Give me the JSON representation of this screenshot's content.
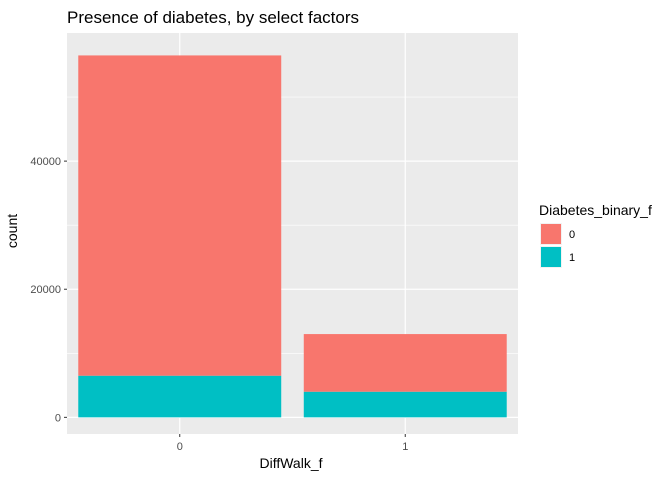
{
  "chart_data": {
    "type": "bar",
    "stacked": true,
    "title": "Presence of diabetes, by select factors",
    "xlabel": "DiffWalk_f",
    "ylabel": "count",
    "categories": [
      "0",
      "1"
    ],
    "series": [
      {
        "name": "0",
        "values": [
          50000,
          9000
        ],
        "color": "#F8766D"
      },
      {
        "name": "1",
        "values": [
          6500,
          4000
        ],
        "color": "#00BFC4"
      }
    ],
    "ylim": [
      -2600,
      60000
    ],
    "yticks": [
      0,
      20000,
      40000
    ],
    "ytick_labels": [
      "0",
      "20000",
      "40000"
    ],
    "grid": true,
    "panel_background": "#EBEBEB",
    "grid_color": "#FFFFFF",
    "legend": {
      "title": "Diabetes_binary_f",
      "placement": "right",
      "entries": [
        "0",
        "1"
      ]
    }
  }
}
